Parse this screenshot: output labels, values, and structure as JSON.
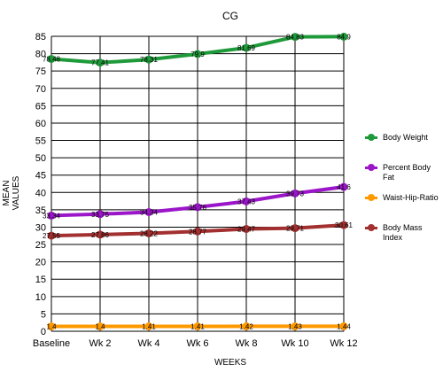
{
  "chart_data": {
    "type": "line",
    "title": "CG",
    "xlabel": "WEEKS",
    "ylabel": "MEAN VALUES",
    "ylabel_lines": [
      "MEAN",
      "VALUES"
    ],
    "categories": [
      "Baseline",
      "Wk 2",
      "Wk 4",
      "Wk 6",
      "Wk 8",
      "Wk 10",
      "Wk 12"
    ],
    "ylim": [
      0,
      85
    ],
    "yticks": [
      0,
      5,
      10,
      15,
      20,
      25,
      30,
      35,
      40,
      45,
      50,
      55,
      60,
      65,
      70,
      75,
      80,
      85
    ],
    "grid": true,
    "legend_position": "right",
    "series": [
      {
        "name": "Body Weight",
        "color": "#1f9a3a",
        "values": [
          78.48,
          77.41,
          78.31,
          79.9,
          81.69,
          84.83,
          84.9
        ],
        "labels": [
          "78.48",
          "77.41",
          "78.31",
          "79.9",
          "81.69",
          "84.83",
          "84.9"
        ]
      },
      {
        "name": "Percent Body Fat",
        "color": "#9b16c9",
        "values": [
          33.34,
          33.75,
          34.34,
          35.76,
          37.43,
          39.73,
          41.6
        ],
        "labels": [
          "33.34",
          "33.75",
          "34.34",
          "35.76",
          "37.43",
          "39.73",
          "41.6"
        ]
      },
      {
        "name": "Waist-Hip-Ratio",
        "color": "#ff9900",
        "values": [
          1.4,
          1.4,
          1.41,
          1.41,
          1.42,
          1.43,
          1.44
        ],
        "labels": [
          "1.4",
          "1.4",
          "1.41",
          "1.41",
          "1.42",
          "1.43",
          "1.44"
        ]
      },
      {
        "name": "Body Mass Index",
        "color": "#a33030",
        "values": [
          27.55,
          27.86,
          28.22,
          28.77,
          29.47,
          29.71,
          30.61
        ],
        "labels": [
          "27.55",
          "27.86",
          "28.22",
          "28.77",
          "29.47",
          "29.71",
          "30.61"
        ]
      }
    ]
  }
}
